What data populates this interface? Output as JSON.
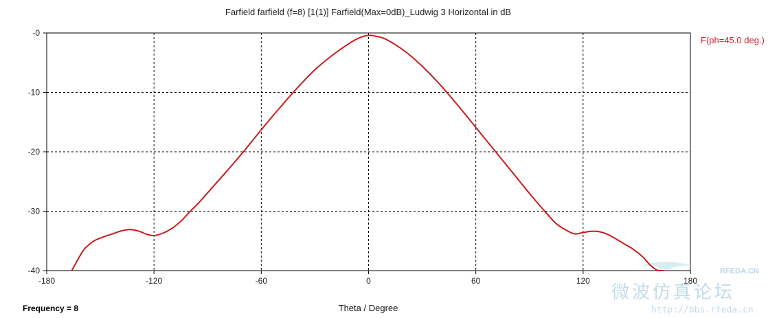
{
  "chart_data": {
    "type": "line",
    "title": "Farfield farfield (f=8) [1(1)] Farfield(Max=0dB)_Ludwig 3 Horizontal in dB",
    "xlabel": "Theta / Degree",
    "ylabel": "",
    "xlim": [
      -180,
      180
    ],
    "ylim": [
      -40,
      0
    ],
    "x_ticks": [
      "-180",
      "-120",
      "-60",
      "0",
      "60",
      "120",
      "180"
    ],
    "y_ticks": [
      "-0",
      "-10",
      "-20",
      "-30",
      "-40"
    ],
    "grid": true,
    "legend_position": "top-right",
    "colors": {
      "series": "#cc1a1a",
      "legend": "#d62030"
    },
    "series": [
      {
        "name": "F(ph=45.0 deg.)",
        "x": [
          -166,
          -160,
          -157,
          -153,
          -148,
          -143,
          -138,
          -133,
          -128,
          -124,
          -120,
          -115,
          -110,
          -105,
          -100,
          -95,
          -90,
          -80,
          -70,
          -60,
          -50,
          -40,
          -30,
          -20,
          -10,
          -5,
          0,
          5,
          10,
          20,
          30,
          40,
          50,
          60,
          70,
          80,
          90,
          100,
          105,
          110,
          115,
          120,
          124,
          128,
          133,
          138,
          143,
          148,
          153,
          158,
          162,
          165
        ],
        "values": [
          -40,
          -36.8,
          -35.8,
          -34.9,
          -34.3,
          -33.8,
          -33.3,
          -33.1,
          -33.4,
          -33.9,
          -34.1,
          -33.7,
          -32.9,
          -31.7,
          -30.1,
          -28.6,
          -26.9,
          -23.5,
          -20.0,
          -16.3,
          -12.7,
          -9.3,
          -6.2,
          -3.7,
          -1.6,
          -0.8,
          -0.4,
          -0.6,
          -1.1,
          -3.0,
          -5.6,
          -8.7,
          -12.2,
          -15.9,
          -19.6,
          -23.3,
          -27.0,
          -30.5,
          -32.1,
          -33.1,
          -33.8,
          -33.6,
          -33.4,
          -33.4,
          -33.8,
          -34.6,
          -35.5,
          -36.4,
          -37.6,
          -39.2,
          -40.6,
          -41.2
        ]
      }
    ]
  },
  "footer": {
    "frequency_label": "Frequency = 8"
  },
  "watermark": {
    "site": "RFEDA.CN",
    "cn_text": "微波仿真论坛",
    "url": "http://bbs.rfeda.cn"
  }
}
